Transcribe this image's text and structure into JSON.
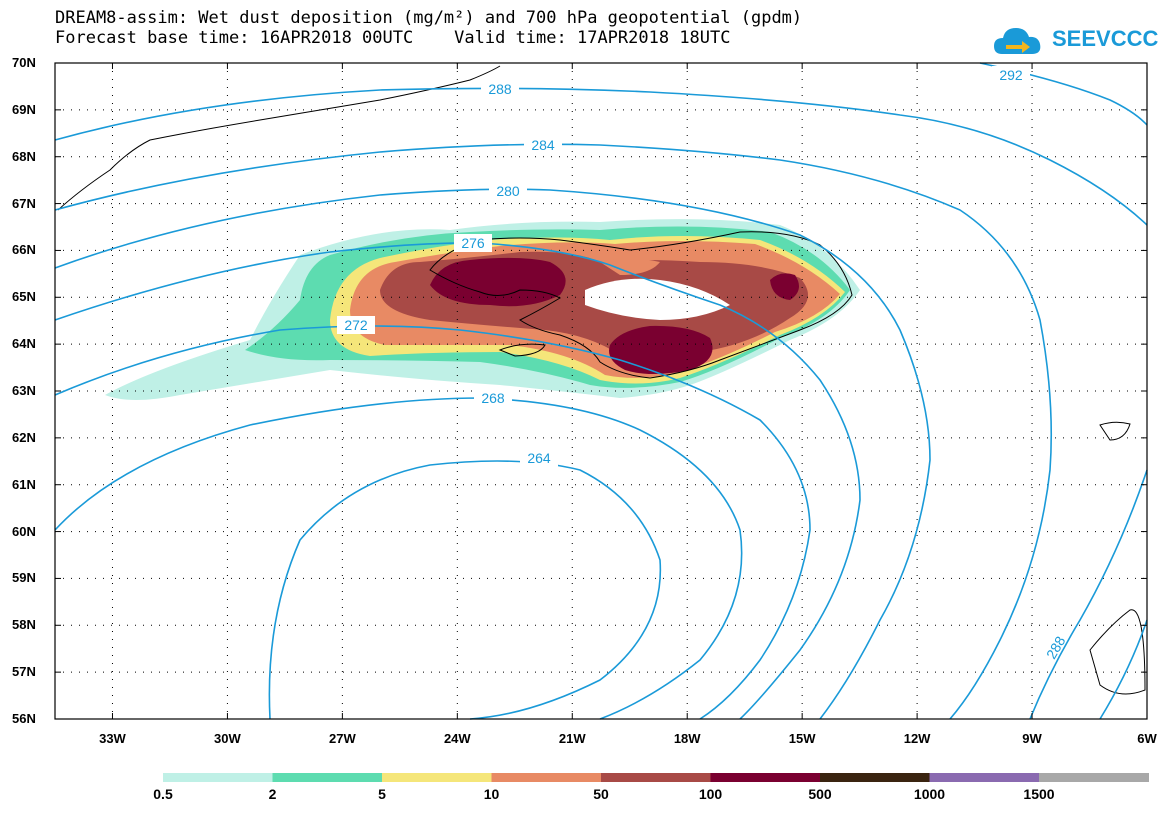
{
  "title": {
    "line1": "DREAM8-assim: Wet dust deposition (mg/m²) and 700 hPa geopotential (gpdm)",
    "line2": "Forecast base time: 16APR2018 00UTC    Valid time: 17APR2018 18UTC"
  },
  "logo": {
    "text": "SEEVCCC",
    "icon": "cloud-arrow-icon",
    "color": "#1a9ad8"
  },
  "map": {
    "lat_labels": [
      "70N",
      "69N",
      "68N",
      "67N",
      "66N",
      "65N",
      "64N",
      "63N",
      "62N",
      "61N",
      "60N",
      "59N",
      "58N",
      "57N",
      "56N"
    ],
    "lon_labels": [
      "33W",
      "30W",
      "27W",
      "24W",
      "21W",
      "18W",
      "15W",
      "12W",
      "9W",
      "6W"
    ],
    "lon_range": [
      -34.5,
      -6
    ],
    "lat_range": [
      56,
      70
    ],
    "contour_labels": [
      "288",
      "284",
      "280",
      "276",
      "272",
      "268",
      "264",
      "292",
      "288"
    ],
    "contour_color": "#1a9ad8"
  },
  "legend": {
    "ticks": [
      "0.5",
      "2",
      "5",
      "10",
      "50",
      "100",
      "500",
      "1000",
      "1500"
    ],
    "colors": [
      "#bff0e6",
      "#5ddcb0",
      "#f5e67a",
      "#e88a64",
      "#a84a46",
      "#7a0030",
      "#3a2410",
      "#8a6ab0",
      "#a8a8a8"
    ]
  }
}
